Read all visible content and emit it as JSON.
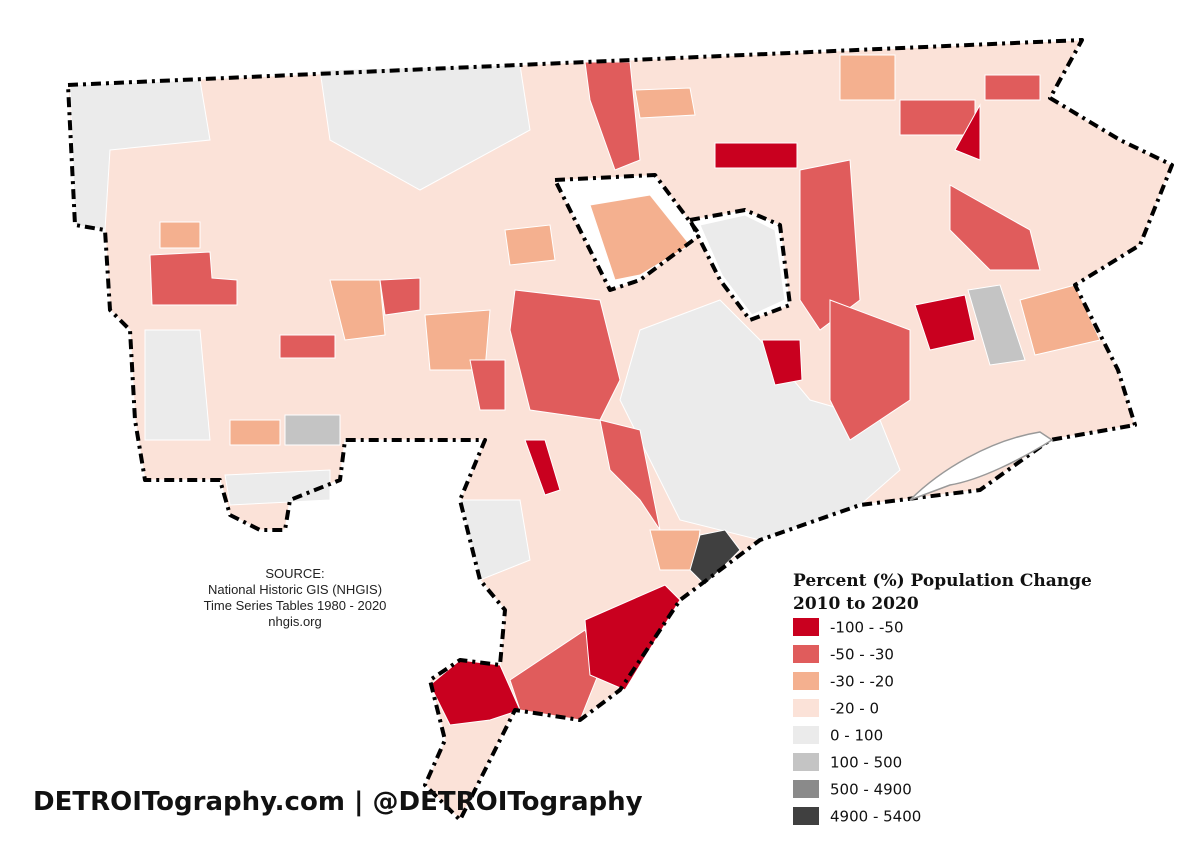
{
  "source": {
    "lines": [
      "SOURCE:",
      "National Historic GIS (NHGIS)",
      "Time Series Tables 1980 - 2020",
      "nhgis.org"
    ]
  },
  "legend": {
    "title": [
      "Percent (%) Population Change",
      "2010 to 2020"
    ],
    "items": [
      {
        "label": "-100 - -50",
        "color": "#c9001f"
      },
      {
        "label": "-50 - -30",
        "color": "#e05c5c"
      },
      {
        "label": "-30 - -20",
        "color": "#f4b08f"
      },
      {
        "label": "-20 - 0",
        "color": "#fbe2d8"
      },
      {
        "label": "0 - 100",
        "color": "#ebebeb"
      },
      {
        "label": "100 - 500",
        "color": "#c4c4c4"
      },
      {
        "label": "500 - 4900",
        "color": "#8a8a8a"
      },
      {
        "label": "4900 - 5400",
        "color": "#404040"
      }
    ]
  },
  "branding": "DETROITography.com | @DETROITography"
}
